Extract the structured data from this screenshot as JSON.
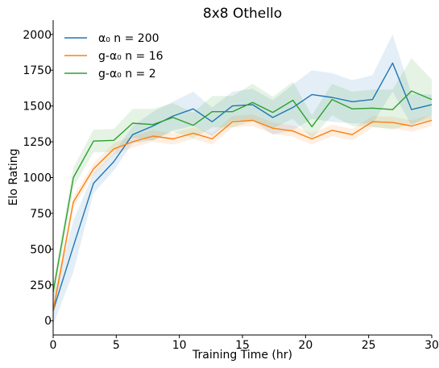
{
  "chart_data": {
    "type": "line",
    "title": "8x8 Othello",
    "xlabel": "Training Time (hr)",
    "ylabel": "Elo Rating",
    "xlim": [
      0,
      30
    ],
    "ylim": [
      -100,
      2100
    ],
    "xticks": [
      "0",
      "5",
      "10",
      "15",
      "20",
      "25",
      "30"
    ],
    "yticks": [
      "0",
      "250",
      "500",
      "750",
      "1000",
      "1250",
      "1500",
      "1750",
      "2000"
    ],
    "grid": false,
    "legend_position": "top-left",
    "series": [
      {
        "name": "α₀ n = 200",
        "color": "#1f77b4",
        "x": [
          0,
          1.6,
          3.2,
          4.8,
          6.3,
          7.9,
          9.5,
          11.1,
          12.6,
          14.2,
          15.8,
          17.4,
          19.0,
          20.5,
          22.1,
          23.7,
          25.3,
          26.9,
          28.4,
          30
        ],
        "y": [
          70,
          520,
          960,
          1110,
          1300,
          1360,
          1430,
          1480,
          1390,
          1500,
          1510,
          1420,
          1490,
          1580,
          1560,
          1530,
          1545,
          1800,
          1475,
          1510
        ],
        "band": [
          100,
          180,
          70,
          60,
          60,
          100,
          100,
          120,
          100,
          100,
          110,
          120,
          160,
          170,
          170,
          150,
          170,
          200,
          110,
          70
        ]
      },
      {
        "name": "g-α₀ n = 16",
        "color": "#ff7f0e",
        "x": [
          0,
          1.6,
          3.2,
          4.8,
          6.3,
          7.9,
          9.5,
          11.1,
          12.6,
          14.2,
          15.8,
          17.4,
          19.0,
          20.5,
          22.1,
          23.7,
          25.3,
          26.9,
          28.4,
          30
        ],
        "y": [
          70,
          830,
          1060,
          1200,
          1250,
          1290,
          1270,
          1310,
          1270,
          1390,
          1400,
          1345,
          1325,
          1270,
          1330,
          1300,
          1390,
          1385,
          1360,
          1400
        ],
        "band": [
          60,
          40,
          40,
          40,
          40,
          40,
          40,
          40,
          40,
          40,
          40,
          40,
          40,
          40,
          40,
          40,
          40,
          40,
          40,
          40
        ]
      },
      {
        "name": "g-α₀ n = 2",
        "color": "#2ca02c",
        "x": [
          0,
          1.6,
          3.2,
          4.8,
          6.3,
          7.9,
          9.5,
          11.1,
          12.6,
          14.2,
          15.8,
          17.4,
          19.0,
          20.5,
          22.1,
          23.7,
          25.3,
          26.9,
          28.4,
          30
        ],
        "y": [
          200,
          1000,
          1255,
          1260,
          1380,
          1370,
          1420,
          1365,
          1460,
          1460,
          1525,
          1455,
          1540,
          1355,
          1545,
          1480,
          1485,
          1475,
          1605,
          1545
        ],
        "band": [
          60,
          70,
          80,
          80,
          100,
          110,
          100,
          90,
          110,
          110,
          130,
          110,
          130,
          80,
          110,
          120,
          130,
          140,
          230,
          140
        ]
      }
    ]
  }
}
